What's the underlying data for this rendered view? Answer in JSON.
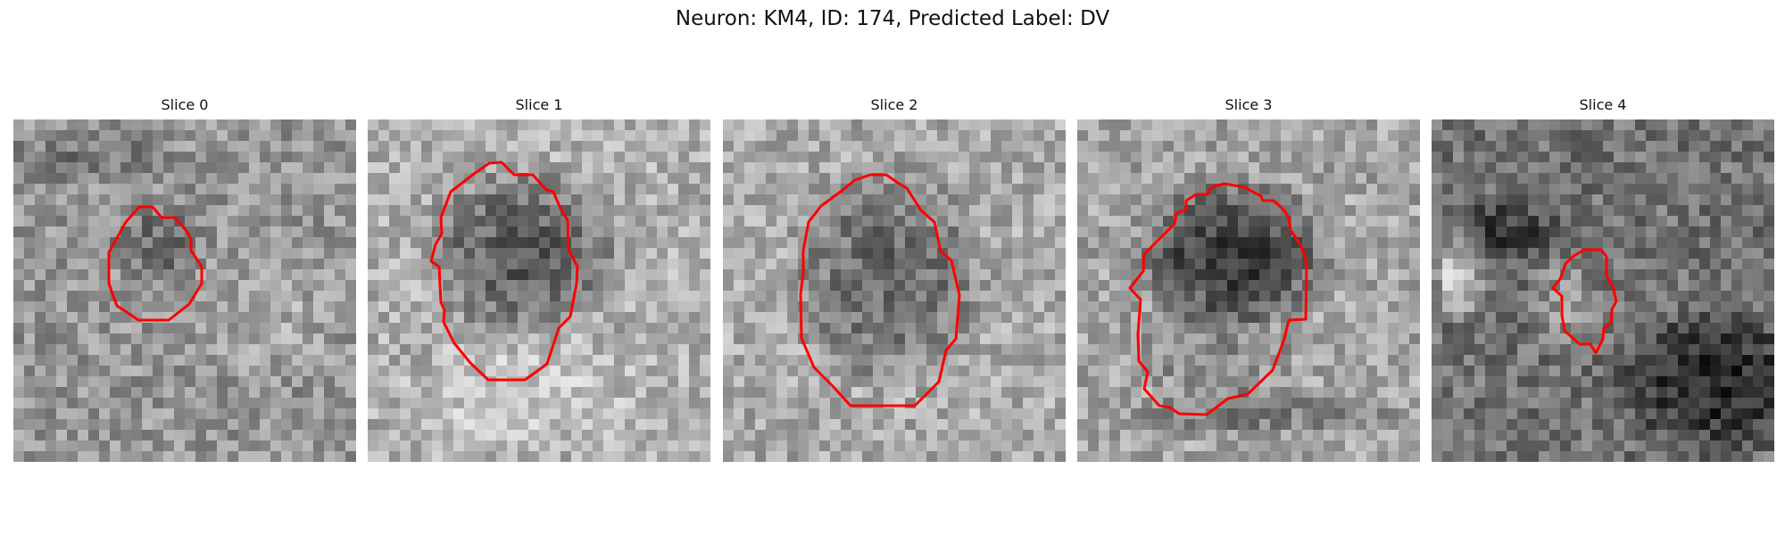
{
  "figure": {
    "title": "Neuron: KM4, ID: 174, Predicted Label: DV"
  },
  "panels": [
    {
      "title": "Slice 0"
    },
    {
      "title": "Slice 1"
    },
    {
      "title": "Slice 2"
    },
    {
      "title": "Slice 3"
    },
    {
      "title": "Slice 4"
    }
  ],
  "colors": {
    "contour": "#ff0000",
    "background": "#ffffff"
  }
}
